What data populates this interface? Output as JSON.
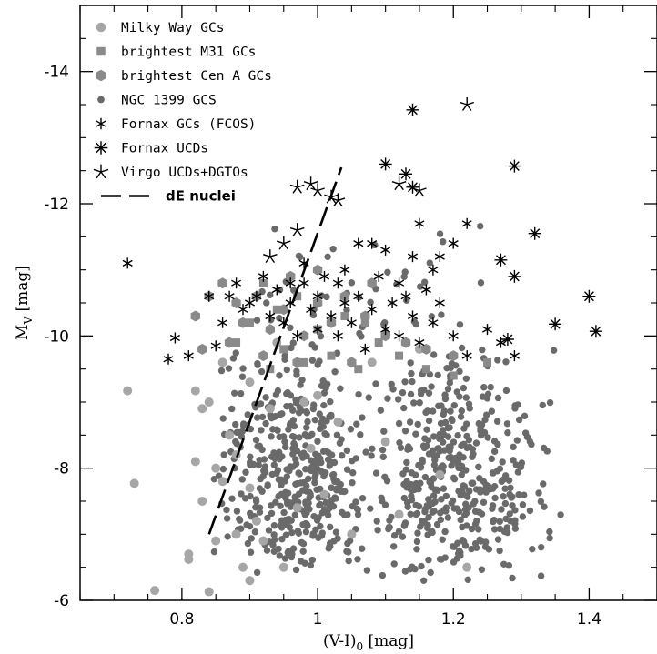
{
  "chart_data": {
    "type": "scatter",
    "xlabel": "(V-I)",
    "xlabel_subscript": "0",
    "xlabel_unit": " [mag]",
    "ylabel": "M",
    "ylabel_subscript": "V",
    "ylabel_unit": " [mag]",
    "xlim": [
      0.65,
      1.5
    ],
    "ylim": [
      -6,
      -15
    ],
    "y_inverted": true,
    "xticks": [
      0.8,
      1,
      1.2,
      1.4
    ],
    "xtick_labels": [
      "0.8",
      "1",
      "1.2",
      "1.4"
    ],
    "yticks": [
      -6,
      -8,
      -10,
      -12,
      -14
    ],
    "ytick_labels": [
      "-6",
      "-8",
      "-10",
      "-12",
      "-14"
    ],
    "legend_position": "top-left",
    "colors": {
      "light": "#a6a6a6",
      "mid": "#8a8a8a",
      "dark": "#6a6a6a",
      "black": "#000000"
    },
    "series": [
      {
        "name": "Milky Way GCs",
        "marker": "circle",
        "color": "#a6a6a6",
        "points": [
          [
            0.72,
            -9.17
          ],
          [
            0.73,
            -7.77
          ],
          [
            0.76,
            -6.15
          ],
          [
            0.81,
            -6.7
          ],
          [
            0.81,
            -6.62
          ],
          [
            0.82,
            -9.17
          ],
          [
            0.83,
            -7.5
          ],
          [
            0.84,
            -6.13
          ],
          [
            0.84,
            -9.0
          ],
          [
            0.82,
            -8.1
          ],
          [
            0.85,
            -8.0
          ],
          [
            0.86,
            -7.8
          ],
          [
            0.87,
            -8.5
          ],
          [
            0.88,
            -8.2
          ],
          [
            0.89,
            -6.5
          ],
          [
            0.9,
            -9.3
          ],
          [
            0.91,
            -7.2
          ],
          [
            0.92,
            -6.9
          ],
          [
            0.93,
            -8.9
          ],
          [
            0.95,
            -6.5
          ],
          [
            0.97,
            -7.4
          ],
          [
            0.98,
            -9.0
          ],
          [
            0.99,
            -8.3
          ],
          [
            1.0,
            -9.1
          ],
          [
            1.01,
            -7.6
          ],
          [
            1.03,
            -8.7
          ],
          [
            1.05,
            -7.0
          ],
          [
            1.08,
            -9.6
          ],
          [
            1.1,
            -8.4
          ],
          [
            1.12,
            -7.3
          ],
          [
            1.15,
            -9.8
          ],
          [
            1.18,
            -7.9
          ],
          [
            1.22,
            -6.5
          ],
          [
            0.86,
            -9.6
          ],
          [
            0.9,
            -7.7
          ],
          [
            0.94,
            -9.9
          ],
          [
            0.83,
            -8.9
          ],
          [
            0.85,
            -6.9
          ],
          [
            0.88,
            -7.0
          ],
          [
            0.9,
            -6.3
          ]
        ]
      },
      {
        "name": "brightest M31 GCs",
        "marker": "square",
        "color": "#8a8a8a",
        "points": [
          [
            0.88,
            -9.9
          ],
          [
            0.9,
            -10.2
          ],
          [
            0.92,
            -10.8
          ],
          [
            0.94,
            -10.4
          ],
          [
            0.95,
            -9.8
          ],
          [
            0.97,
            -10.6
          ],
          [
            0.98,
            -9.6
          ],
          [
            1.0,
            -10.1
          ],
          [
            1.02,
            -9.7
          ],
          [
            1.04,
            -10.3
          ],
          [
            1.06,
            -9.5
          ],
          [
            1.09,
            -9.9
          ],
          [
            1.12,
            -9.7
          ],
          [
            1.16,
            -9.5
          ],
          [
            1.2,
            -9.4
          ],
          [
            1.25,
            -9.6
          ],
          [
            0.93,
            -9.5
          ],
          [
            1.07,
            -10.2
          ]
        ]
      },
      {
        "name": "brightest Cen A GCs",
        "marker": "hexagon",
        "color": "#8a8a8a",
        "points": [
          [
            0.82,
            -10.3
          ],
          [
            0.84,
            -10.6
          ],
          [
            0.86,
            -10.8
          ],
          [
            0.88,
            -10.5
          ],
          [
            0.89,
            -10.2
          ],
          [
            0.91,
            -10.6
          ],
          [
            0.93,
            -10.1
          ],
          [
            0.95,
            -10.4
          ],
          [
            0.96,
            -10.9
          ],
          [
            0.98,
            -10.0
          ],
          [
            1.0,
            -10.5
          ],
          [
            1.02,
            -10.2
          ],
          [
            1.04,
            -10.6
          ],
          [
            1.07,
            -10.3
          ],
          [
            1.1,
            -10.0
          ],
          [
            1.13,
            -9.9
          ],
          [
            1.16,
            -9.8
          ],
          [
            1.2,
            -9.7
          ],
          [
            0.83,
            -9.8
          ],
          [
            0.87,
            -9.9
          ],
          [
            0.92,
            -9.7
          ],
          [
            0.97,
            -9.6
          ],
          [
            1.05,
            -9.6
          ],
          [
            1.08,
            -10.8
          ],
          [
            1.0,
            -11.0
          ]
        ]
      },
      {
        "name": "NGC 1399 GCS",
        "marker": "dot",
        "color": "#6a6a6a",
        "points": [],
        "cloud": [
          {
            "n": 420,
            "x": [
              0.84,
              1.08
            ],
            "y": [
              -6.2,
              -9.9
            ],
            "mx": 0.97,
            "my": -7.6
          },
          {
            "n": 440,
            "x": [
              1.06,
              1.36
            ],
            "y": [
              -6.2,
              -9.9
            ],
            "mx": 1.18,
            "my": -7.4
          },
          {
            "n": 60,
            "x": [
              0.86,
              1.28
            ],
            "y": [
              -9.4,
              -11.8
            ],
            "mx": 1.08,
            "my": -10.2
          }
        ]
      },
      {
        "name": "Fornax GCs (FCOS)",
        "marker": "asterisk6",
        "color": "#000000",
        "points": [
          [
            0.72,
            -11.1
          ],
          [
            0.78,
            -9.65
          ],
          [
            0.79,
            -9.97
          ],
          [
            0.81,
            -9.7
          ],
          [
            0.84,
            -10.6
          ],
          [
            0.85,
            -9.85
          ],
          [
            0.86,
            -10.2
          ],
          [
            0.87,
            -10.6
          ],
          [
            0.88,
            -10.8
          ],
          [
            0.89,
            -10.4
          ],
          [
            0.9,
            -10.5
          ],
          [
            0.91,
            -10.6
          ],
          [
            0.92,
            -10.9
          ],
          [
            0.93,
            -10.3
          ],
          [
            0.94,
            -10.7
          ],
          [
            0.95,
            -10.2
          ],
          [
            0.96,
            -10.5
          ],
          [
            0.97,
            -10.0
          ],
          [
            0.98,
            -10.8
          ],
          [
            0.99,
            -10.4
          ],
          [
            1.0,
            -10.1
          ],
          [
            1.01,
            -10.9
          ],
          [
            1.02,
            -10.3
          ],
          [
            1.03,
            -10.0
          ],
          [
            1.04,
            -10.5
          ],
          [
            1.05,
            -10.2
          ],
          [
            1.06,
            -10.6
          ],
          [
            1.07,
            -9.8
          ],
          [
            1.08,
            -10.4
          ],
          [
            1.09,
            -10.9
          ],
          [
            1.1,
            -10.1
          ],
          [
            1.11,
            -10.5
          ],
          [
            1.12,
            -10.0
          ],
          [
            1.13,
            -10.6
          ],
          [
            1.14,
            -10.3
          ],
          [
            1.15,
            -9.9
          ],
          [
            1.16,
            -10.7
          ],
          [
            1.17,
            -10.2
          ],
          [
            1.18,
            -10.5
          ],
          [
            1.2,
            -10.0
          ],
          [
            1.22,
            -9.7
          ],
          [
            1.25,
            -10.1
          ],
          [
            1.27,
            -9.9
          ],
          [
            1.29,
            -9.7
          ],
          [
            1.14,
            -11.2
          ],
          [
            1.17,
            -11.0
          ],
          [
            1.2,
            -11.4
          ],
          [
            1.1,
            -11.3
          ],
          [
            0.96,
            -10.8
          ],
          [
            1.0,
            -10.6
          ],
          [
            1.04,
            -11.0
          ],
          [
            0.98,
            -11.1
          ],
          [
            1.06,
            -11.4
          ],
          [
            1.12,
            -10.8
          ],
          [
            1.18,
            -11.2
          ],
          [
            1.22,
            -11.7
          ],
          [
            1.15,
            -11.7
          ],
          [
            1.08,
            -11.4
          ],
          [
            1.03,
            -10.8
          ]
        ]
      },
      {
        "name": "Fornax UCDs",
        "marker": "asterisk8",
        "color": "#000000",
        "points": [
          [
            1.14,
            -13.42
          ],
          [
            1.1,
            -12.6
          ],
          [
            1.13,
            -12.45
          ],
          [
            1.14,
            -12.25
          ],
          [
            1.29,
            -12.57
          ],
          [
            1.27,
            -11.15
          ],
          [
            1.29,
            -10.9
          ],
          [
            1.32,
            -11.55
          ],
          [
            1.4,
            -10.6
          ],
          [
            1.35,
            -10.18
          ],
          [
            1.41,
            -10.07
          ],
          [
            1.28,
            -9.95
          ]
        ]
      },
      {
        "name": "Virgo UCDs+DGTOs",
        "marker": "asterisk5",
        "color": "#000000",
        "points": [
          [
            1.22,
            -13.5
          ],
          [
            0.97,
            -12.25
          ],
          [
            1.0,
            -12.2
          ],
          [
            1.02,
            -12.1
          ],
          [
            1.03,
            -12.05
          ],
          [
            0.99,
            -12.3
          ],
          [
            0.95,
            -11.4
          ],
          [
            0.97,
            -11.6
          ],
          [
            0.93,
            -11.2
          ],
          [
            1.12,
            -12.3
          ],
          [
            1.15,
            -12.2
          ]
        ]
      },
      {
        "name": "dE nuclei",
        "marker": "dashed-line",
        "color": "#000000",
        "line": [
          [
            0.84,
            -7.0
          ],
          [
            1.035,
            -12.55
          ]
        ]
      }
    ]
  }
}
